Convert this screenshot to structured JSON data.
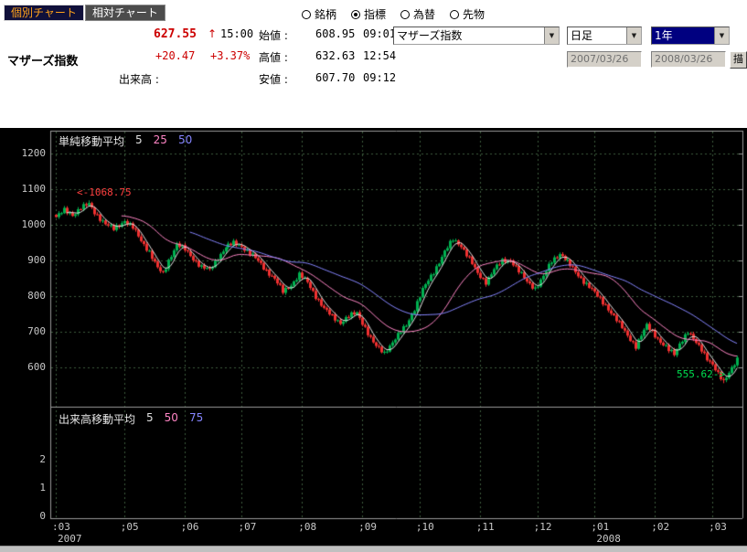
{
  "tabs": [
    {
      "label": "個別チャート",
      "active": true
    },
    {
      "label": "相対チャート",
      "active": false
    }
  ],
  "radio_group": {
    "options": [
      {
        "label": "銘柄",
        "selected": false
      },
      {
        "label": "指標",
        "selected": true
      },
      {
        "label": "為替",
        "selected": false
      },
      {
        "label": "先物",
        "selected": false
      }
    ]
  },
  "icons": {
    "dropdown_arrow": "▼"
  },
  "quote": {
    "name": "マザーズ指数",
    "last": "627.55",
    "direction": "↑",
    "last_time": "15:00",
    "change": "+20.47",
    "change_pct": "+3.37%",
    "open_label": "始値 :",
    "open": "608.95",
    "open_time": "09:01",
    "high_label": "高値 :",
    "high": "632.63",
    "high_time": "12:54",
    "low_label": "安値 :",
    "low": "607.70",
    "low_time": "09:12",
    "volume_label": "出来高 :",
    "volume": ""
  },
  "controls": {
    "symbol": "マザーズ指数",
    "interval": "日足",
    "range": "1年",
    "date_from": "2007/03/26",
    "date_to": "2008/03/26",
    "draw_button": "描"
  },
  "chart": {
    "ma_legend": {
      "title": "単純移動平均",
      "periods": [
        "5",
        "25",
        "50"
      ]
    },
    "vol_legend": {
      "title": "出来高移動平均",
      "periods": [
        "5",
        "50",
        "75"
      ]
    },
    "y_ticks": [
      1200,
      1100,
      1000,
      900,
      800,
      700,
      600
    ],
    "vol_ticks": [
      2,
      1,
      0
    ],
    "x_ticks": [
      {
        "label": ":03",
        "day": 0
      },
      {
        "label": ";05",
        "day": 25
      },
      {
        "label": ";06",
        "day": 47
      },
      {
        "label": ";07",
        "day": 68
      },
      {
        "label": ";08",
        "day": 90
      },
      {
        "label": ";09",
        "day": 112
      },
      {
        "label": ";10",
        "day": 133
      },
      {
        "label": ";11",
        "day": 155
      },
      {
        "label": ";12",
        "day": 176
      },
      {
        "label": ";01",
        "day": 197
      },
      {
        "label": ";02",
        "day": 219
      },
      {
        "label": ";03",
        "day": 240
      }
    ],
    "year_labels": [
      {
        "label": "2007",
        "day": 0
      },
      {
        "label": "2008",
        "day": 197
      }
    ],
    "annotations": {
      "high": "<-1068.75",
      "low": "555.62->"
    },
    "colors": {
      "up": "#00b050",
      "down": "#f03030",
      "ma5": "#e0e0e0",
      "ma25": "#ff85c5",
      "ma50": "#8585ff",
      "grid": "#3d5c3d",
      "frame": "#9a9a9a",
      "annotation_high": "#ff4040",
      "annotation_low": "#00e050"
    }
  },
  "chart_data": {
    "type": "candlestick",
    "title": "マザーズ指数 日足 1年 (2007/03/26 - 2008/03/26)",
    "ylim": [
      600,
      1200
    ],
    "days": 250,
    "last_close": 627.55,
    "period_high": 1068.75,
    "period_high_day": 12,
    "period_low": 555.62,
    "period_low_day": 244,
    "moving_averages": [
      5,
      25,
      50
    ],
    "close_anchors": [
      [
        0,
        1022
      ],
      [
        3,
        1040
      ],
      [
        6,
        1028
      ],
      [
        9,
        1048
      ],
      [
        12,
        1058
      ],
      [
        14,
        1035
      ],
      [
        18,
        1002
      ],
      [
        21,
        988
      ],
      [
        25,
        1012
      ],
      [
        28,
        992
      ],
      [
        31,
        955
      ],
      [
        34,
        925
      ],
      [
        37,
        878
      ],
      [
        39,
        862
      ],
      [
        41,
        900
      ],
      [
        44,
        946
      ],
      [
        47,
        930
      ],
      [
        50,
        905
      ],
      [
        53,
        882
      ],
      [
        56,
        872
      ],
      [
        59,
        908
      ],
      [
        62,
        938
      ],
      [
        65,
        948
      ],
      [
        68,
        940
      ],
      [
        71,
        920
      ],
      [
        74,
        898
      ],
      [
        77,
        872
      ],
      [
        80,
        848
      ],
      [
        83,
        812
      ],
      [
        86,
        832
      ],
      [
        89,
        860
      ],
      [
        92,
        838
      ],
      [
        95,
        800
      ],
      [
        98,
        765
      ],
      [
        101,
        742
      ],
      [
        104,
        726
      ],
      [
        107,
        744
      ],
      [
        110,
        752
      ],
      [
        113,
        712
      ],
      [
        115,
        682
      ],
      [
        117,
        658
      ],
      [
        120,
        640
      ],
      [
        122,
        662
      ],
      [
        125,
        690
      ],
      [
        128,
        718
      ],
      [
        131,
        765
      ],
      [
        134,
        818
      ],
      [
        138,
        868
      ],
      [
        142,
        925
      ],
      [
        145,
        958
      ],
      [
        148,
        942
      ],
      [
        151,
        905
      ],
      [
        154,
        862
      ],
      [
        157,
        840
      ],
      [
        160,
        875
      ],
      [
        163,
        898
      ],
      [
        166,
        902
      ],
      [
        169,
        870
      ],
      [
        172,
        840
      ],
      [
        175,
        822
      ],
      [
        178,
        855
      ],
      [
        181,
        898
      ],
      [
        184,
        920
      ],
      [
        186,
        905
      ],
      [
        189,
        876
      ],
      [
        192,
        850
      ],
      [
        195,
        826
      ],
      [
        198,
        800
      ],
      [
        201,
        775
      ],
      [
        204,
        742
      ],
      [
        207,
        712
      ],
      [
        210,
        680
      ],
      [
        212,
        658
      ],
      [
        214,
        688
      ],
      [
        216,
        718
      ],
      [
        218,
        702
      ],
      [
        221,
        670
      ],
      [
        224,
        648
      ],
      [
        226,
        638
      ],
      [
        228,
        668
      ],
      [
        231,
        698
      ],
      [
        233,
        678
      ],
      [
        236,
        652
      ],
      [
        238,
        625
      ],
      [
        240,
        605
      ],
      [
        242,
        580
      ],
      [
        244,
        562
      ],
      [
        246,
        588
      ],
      [
        248,
        610
      ],
      [
        249,
        627.55
      ]
    ]
  }
}
